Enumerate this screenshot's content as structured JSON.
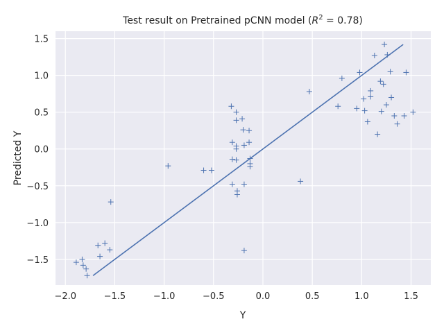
{
  "chart_data": {
    "type": "scatter",
    "title": "Test result on Pretrained pCNN model (R² = 0.78)",
    "title_prefix": "Test result on Pretrained pCNN model (",
    "title_r": "R",
    "title_exp": "2",
    "title_suffix": " = 0.78)",
    "xlabel": "Y",
    "ylabel": "Predicted Y",
    "xlim": [
      -2.1,
      1.7
    ],
    "ylim": [
      -1.85,
      1.6
    ],
    "xticks": [
      -2.0,
      -1.5,
      -1.0,
      -0.5,
      0.0,
      0.5,
      1.0,
      1.5
    ],
    "yticks": [
      -1.5,
      -1.0,
      -0.5,
      0.0,
      0.5,
      1.0,
      1.5
    ],
    "xtick_labels": [
      "−2.0",
      "−1.5",
      "−1.0",
      "−0.5",
      "0.0",
      "0.5",
      "1.0",
      "1.5"
    ],
    "ytick_labels": [
      "−1.5",
      "−1.0",
      "−0.5",
      "0.0",
      "0.5",
      "1.0",
      "1.5"
    ],
    "grid": true,
    "background_color": "#eaeaf2",
    "series": [
      {
        "marker": "plus",
        "color": "#4c72b0",
        "x": [
          -1.89,
          -1.83,
          -1.82,
          -1.79,
          -1.78,
          -1.67,
          -1.65,
          -1.6,
          -1.55,
          -1.54,
          -0.96,
          -0.6,
          -0.52,
          -0.32,
          -0.31,
          -0.31,
          -0.31,
          -0.27,
          -0.27,
          -0.27,
          -0.27,
          -0.27,
          -0.26,
          -0.26,
          -0.21,
          -0.2,
          -0.19,
          -0.19,
          -0.19,
          -0.14,
          -0.14,
          -0.13,
          -0.13,
          -0.13,
          0.38,
          0.47,
          0.76,
          0.8,
          0.95,
          0.98,
          1.02,
          1.03,
          1.06,
          1.09,
          1.09,
          1.13,
          1.16,
          1.19,
          1.2,
          1.22,
          1.23,
          1.25,
          1.26,
          1.29,
          1.3,
          1.33,
          1.36,
          1.43,
          1.45,
          1.52
        ],
        "y": [
          -1.54,
          -1.5,
          -1.58,
          -1.63,
          -1.72,
          -1.31,
          -1.46,
          -1.28,
          -1.37,
          -0.72,
          -0.23,
          -0.29,
          -0.29,
          0.58,
          0.09,
          -0.14,
          -0.48,
          0.5,
          0.39,
          0.04,
          0.0,
          -0.15,
          -0.57,
          -0.62,
          0.41,
          0.26,
          0.05,
          -0.48,
          -1.38,
          0.25,
          0.09,
          -0.13,
          -0.2,
          -0.24,
          -0.44,
          0.78,
          0.58,
          0.96,
          0.55,
          1.04,
          0.68,
          0.52,
          0.37,
          0.79,
          0.71,
          1.27,
          0.2,
          0.92,
          0.51,
          0.88,
          1.42,
          0.6,
          1.28,
          1.05,
          0.7,
          0.45,
          0.34,
          0.45,
          1.04,
          0.5
        ]
      }
    ],
    "fit_line": {
      "color": "#4c72b0",
      "x": [
        -1.72,
        1.42
      ],
      "y": [
        -1.72,
        1.42
      ]
    }
  }
}
